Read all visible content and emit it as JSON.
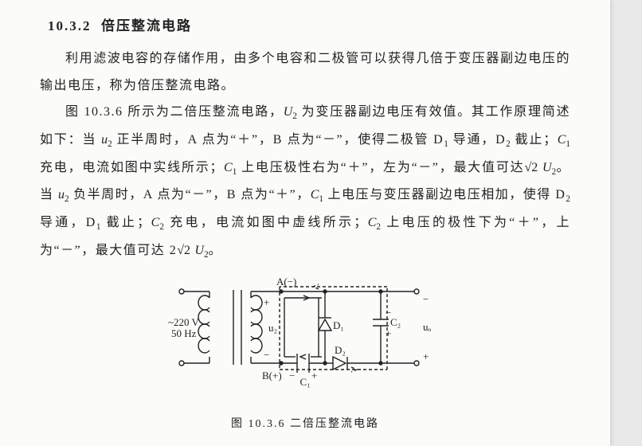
{
  "heading": {
    "number": "10.3.2",
    "title": "倍压整流电路"
  },
  "paragraphs": {
    "p1": "利用滤波电容的存储作用，由多个电容和二极管可以获得几倍于变压器副边电压的输出电压，称为倍压整流电路。",
    "p2_a": "图 10.3.6 所示为二倍压整流电路，",
    "p2_b": " 为变压器副边电压有效值。其工作原理简述如下：当 ",
    "p2_c": " 正半周时，A 点为“＋”，B 点为“－”，使得二极管 D",
    "p2_d": " 导通，D",
    "p2_e": " 截止；",
    "p2_f": " 充电，电流如图中实线所示；",
    "p2_g": " 上电压极性右为“＋”，左为“－”，最大值可达",
    "p2_h": "。当 ",
    "p2_i": " 负半周时，A 点为“－”，B 点为“＋”，",
    "p2_j": " 上电压与变压器副边电压相加，使得 D",
    "p2_k": " 导通，D",
    "p2_l": " 截止；",
    "p2_m": " 充电，电流如图中虚线所示；",
    "p2_n": " 上电压的极性下为“＋”，上为“－”，最大值可达 2",
    "p2_o": "。"
  },
  "figure": {
    "caption": "图 10.3.6  二倍压整流电路",
    "labels": {
      "A": "A(−)",
      "B": "B(+)",
      "u2": "u₂",
      "D1": "D₁",
      "D2": "D₂",
      "C1": "C₁",
      "C2": "C₂",
      "uo": "uₒ",
      "src_v": "~220 V",
      "src_hz": "50 Hz",
      "plus": "+",
      "minus": "−"
    },
    "colors": {
      "stroke": "#222222",
      "dash": "#222222",
      "bg": "#fbfbf9"
    },
    "line_width": 1.4,
    "dash_pattern": "4,3"
  }
}
